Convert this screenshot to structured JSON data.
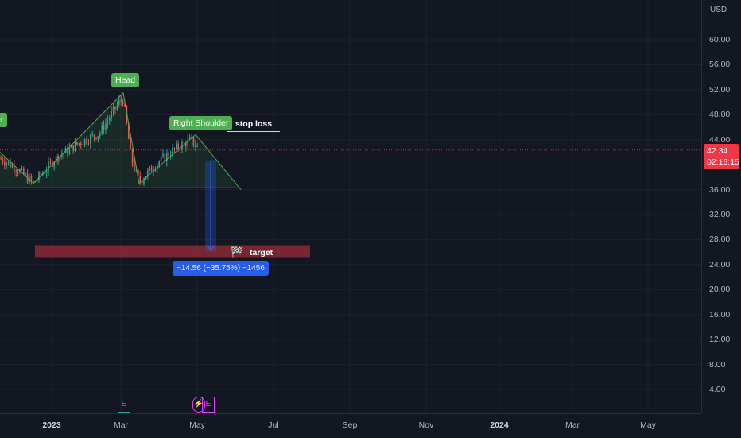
{
  "chart_data": {
    "type": "candlestick",
    "currency": "USD",
    "y_ticks": [
      "60.00",
      "56.00",
      "52.00",
      "48.00",
      "44.00",
      "40.00",
      "36.00",
      "32.00",
      "28.00",
      "24.00",
      "20.00",
      "16.00",
      "12.00",
      "8.00",
      "4.00"
    ],
    "x_ticks": [
      {
        "label": "2023",
        "year": true
      },
      {
        "label": "Mar",
        "year": false
      },
      {
        "label": "May",
        "year": false
      },
      {
        "label": "Jul",
        "year": false
      },
      {
        "label": "Sep",
        "year": false
      },
      {
        "label": "Nov",
        "year": false
      },
      {
        "label": "2024",
        "year": true
      },
      {
        "label": "Mar",
        "year": false
      },
      {
        "label": "May",
        "year": false
      }
    ],
    "current_price": "42.34",
    "countdown": "02:16:15",
    "annotations": {
      "head": "Head",
      "left_shoulder_partial": "er",
      "right_shoulder": "Right Shoulder",
      "stop_loss": "stop loss",
      "target": "target",
      "measure": "−14.56 (−35.75%) −1456",
      "event_earnings_1": "E",
      "event_earnings_2": "E",
      "event_split": "⚡"
    },
    "pattern": {
      "neckline_start": 37.0,
      "head_peak": 51.5,
      "right_shoulder_peak": 44.8,
      "neckline_end": 37.0,
      "target_zone": [
        25.2,
        27.1
      ],
      "measure_from": 40.7,
      "measure_to": 26.1
    },
    "colors": {
      "background": "#131722",
      "up": "#26a69a",
      "down": "#ef5350",
      "pattern": "#4caf50",
      "target_zone": "#8b2a35",
      "measure": "#2962ff",
      "price_line": "#f23645"
    }
  }
}
